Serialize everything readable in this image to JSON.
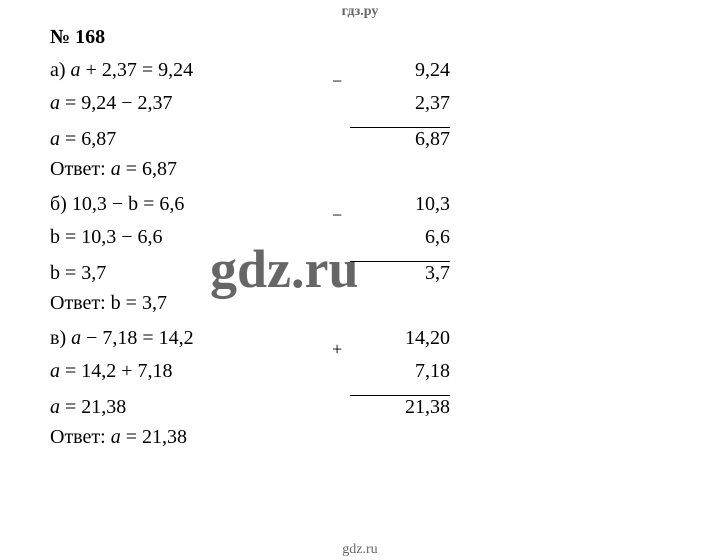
{
  "header": "гдз.ру",
  "footer": "gdz.ru",
  "title": "№ 168",
  "watermark": "gdz.ru",
  "problems": {
    "a": {
      "label": "а)",
      "eq1": "a + 2,37 = 9,24",
      "eq2": "a = 9,24 − 2,37",
      "eq3": "a = 6,87",
      "answer": "Ответ: a = 6,87",
      "calc": {
        "sign": "−",
        "top": "9,24",
        "bottom": "2,37",
        "result": "6,87"
      }
    },
    "b": {
      "label": "б)",
      "eq1": "10,3 − b = 6,6",
      "eq2": "b = 10,3 − 6,6",
      "eq3": "b = 3,7",
      "answer": "Ответ: b = 3,7",
      "calc": {
        "sign": "−",
        "top": "10,3",
        "bottom": "6,6",
        "result": "3,7"
      }
    },
    "c": {
      "label": "в)",
      "eq1": "a − 7,18 = 14,2",
      "eq2": "a = 14,2 + 7,18",
      "eq3": "a = 21,38",
      "answer": "Ответ: a = 21,38",
      "calc": {
        "sign": "+",
        "top": "14,20",
        "bottom": "7,18",
        "result": "21,38"
      }
    }
  },
  "styles": {
    "font_family": "Times New Roman",
    "body_fontsize": 20,
    "header_fontsize": 14,
    "title_fontsize": 20,
    "text_color": "#000000",
    "header_color": "#666666",
    "background": "#ffffff",
    "watermark_color": "rgba(0,0,0,0.6)",
    "line_height": 33
  }
}
